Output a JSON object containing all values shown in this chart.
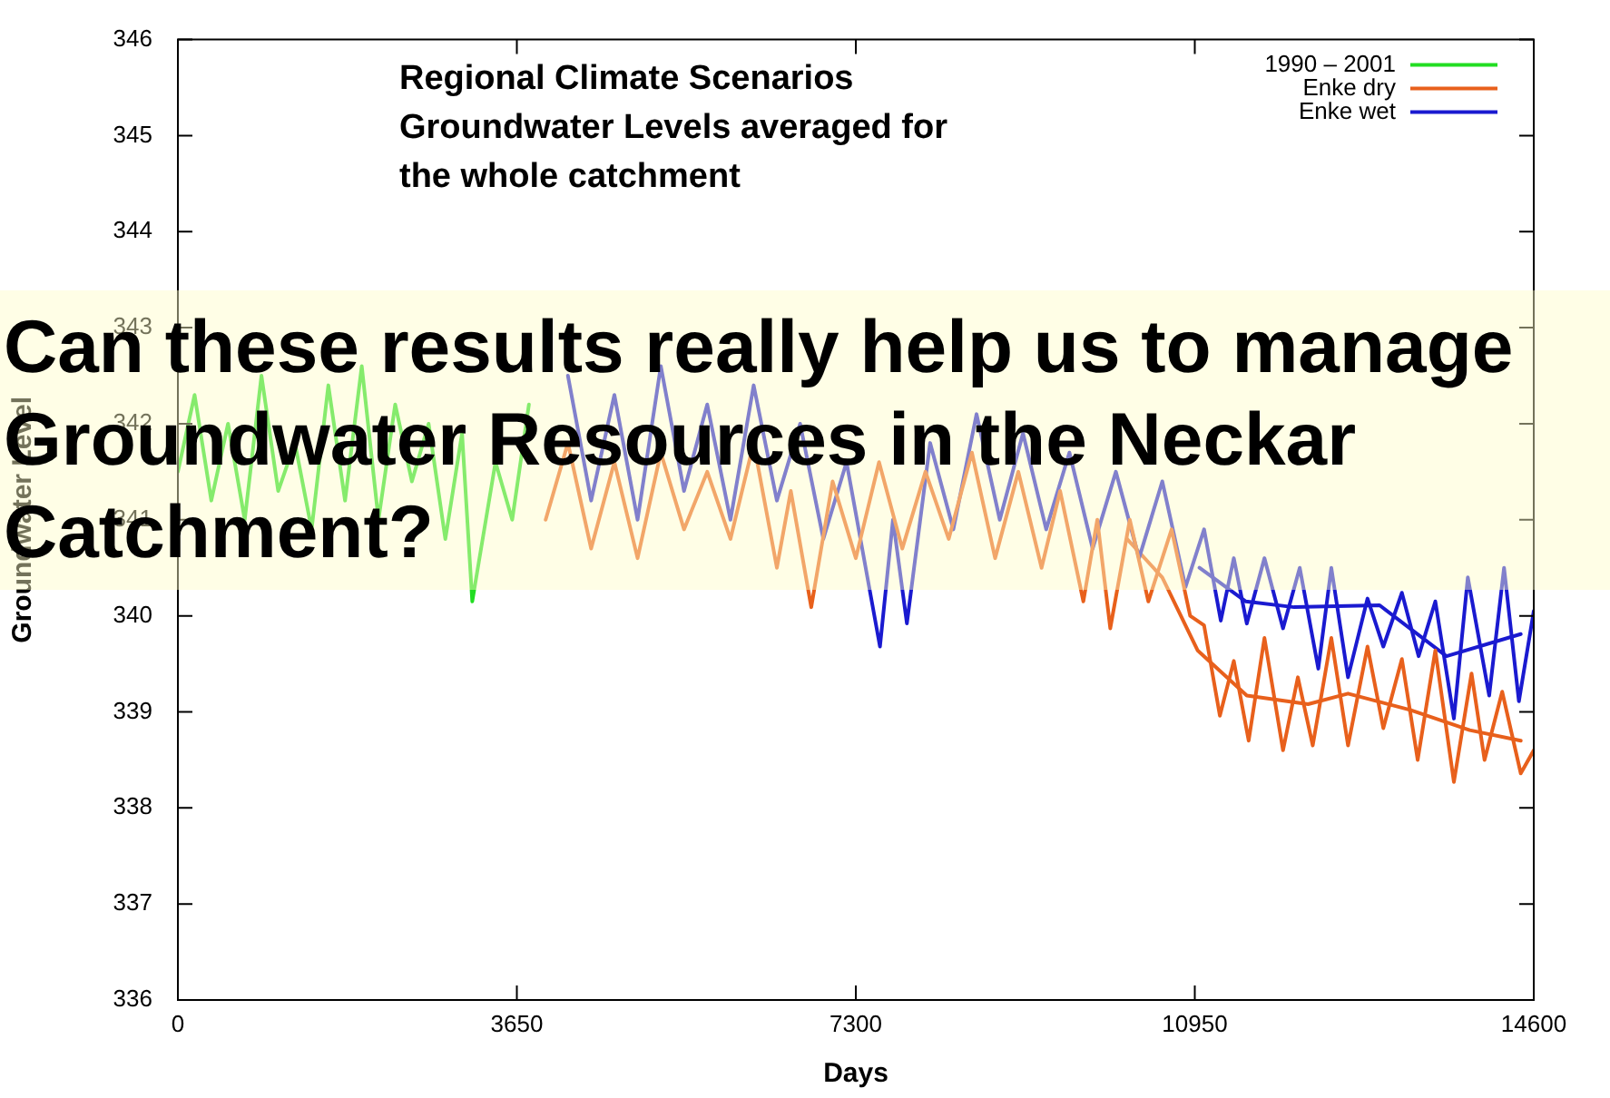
{
  "chart_data": {
    "type": "line",
    "title": "Regional Climate Scenarios\nGroundwater Levels averaged for\nthe whole catchment",
    "xlabel": "Days",
    "ylabel": "Groundwater Level",
    "legend": "top right",
    "grid": false,
    "marker": "none",
    "line_style": "solid",
    "xlim": [
      0,
      14600
    ],
    "xticks": [
      0,
      3650,
      7300,
      10950,
      14600
    ],
    "ylim": [
      336,
      346
    ],
    "yticks": [
      336,
      337,
      338,
      339,
      340,
      341,
      342,
      343,
      344,
      345,
      346
    ],
    "annotations": [
      "Can these results really help us to manage Groundwater Resources  in the Neckar Catchment?"
    ],
    "series": [
      {
        "name": "1990 – 2001",
        "color": "#22dd22",
        "x": [
          0,
          180,
          360,
          540,
          720,
          900,
          1080,
          1260,
          1440,
          1620,
          1800,
          1980,
          2160,
          2340,
          2520,
          2700,
          2880,
          3060,
          3170,
          3420,
          3600,
          3780
        ],
        "values": [
          341.5,
          342.3,
          341.2,
          342.0,
          341.0,
          342.5,
          341.3,
          341.8,
          340.9,
          342.4,
          341.2,
          342.6,
          341.0,
          342.2,
          341.4,
          342.0,
          340.8,
          341.9,
          340.15,
          341.6,
          341.0,
          342.2
        ]
      },
      {
        "name": "Enke dry",
        "color": "#e8601c",
        "x": [
          3960,
          4200,
          4450,
          4700,
          4950,
          5200,
          5450,
          5700,
          5950,
          6200,
          6450,
          6600,
          6820,
          7050,
          7300,
          7550,
          7800,
          8050,
          8300,
          8550,
          8800,
          9050,
          9300,
          9500,
          9750,
          9900,
          10040,
          10250,
          10450,
          10700,
          10900,
          11050,
          11220,
          11370,
          11530,
          11700,
          11900,
          12060,
          12220,
          12420,
          12600,
          12810,
          12980,
          13180,
          13350,
          13540,
          13740,
          13930,
          14070,
          14260,
          14460,
          14600
        ],
        "values": [
          341.0,
          341.8,
          340.7,
          341.6,
          340.6,
          341.7,
          340.9,
          341.5,
          340.8,
          341.8,
          340.5,
          341.3,
          340.09,
          341.4,
          340.6,
          341.6,
          340.7,
          341.5,
          340.8,
          341.7,
          340.6,
          341.5,
          340.5,
          341.3,
          340.15,
          341.0,
          339.87,
          341.0,
          340.15,
          340.9,
          340.0,
          339.9,
          338.96,
          339.53,
          338.7,
          339.77,
          338.6,
          339.36,
          338.65,
          339.77,
          338.65,
          339.68,
          338.83,
          339.55,
          338.5,
          339.64,
          338.27,
          339.4,
          338.5,
          339.21,
          338.36,
          338.6
        ]
      },
      {
        "name": "Enke wet",
        "color": "#1a1ad0",
        "x": [
          4200,
          4450,
          4700,
          4950,
          5200,
          5450,
          5700,
          5950,
          6200,
          6450,
          6700,
          6950,
          7200,
          7560,
          7700,
          7850,
          8100,
          8350,
          8600,
          8850,
          9100,
          9350,
          9600,
          9850,
          10100,
          10350,
          10600,
          10850,
          11050,
          11230,
          11370,
          11510,
          11700,
          11900,
          12080,
          12280,
          12420,
          12600,
          12810,
          12980,
          13180,
          13360,
          13540,
          13740,
          13890,
          14120,
          14280,
          14440,
          14600
        ],
        "values": [
          342.5,
          341.2,
          342.3,
          341.0,
          342.6,
          341.3,
          342.2,
          341.0,
          342.4,
          341.2,
          342.0,
          340.8,
          341.6,
          339.68,
          341.0,
          339.92,
          341.8,
          340.9,
          342.1,
          341.0,
          341.9,
          340.9,
          341.7,
          340.7,
          341.5,
          340.6,
          341.4,
          340.3,
          340.9,
          339.95,
          340.6,
          339.92,
          340.6,
          339.87,
          340.5,
          339.45,
          340.5,
          339.36,
          340.18,
          339.68,
          340.24,
          339.58,
          340.15,
          338.93,
          340.4,
          339.17,
          340.5,
          339.11,
          340.05
        ]
      },
      {
        "color": "#e8601c",
        "x": [
          10220,
          10600,
          10980,
          11510,
          12170,
          12600,
          13270,
          13910,
          14460
        ],
        "values": [
          340.8,
          340.4,
          339.64,
          339.17,
          339.08,
          339.19,
          339.02,
          338.81,
          338.7
        ]
      },
      {
        "color": "#1a1ad0",
        "x": [
          11000,
          11500,
          12020,
          12940,
          13660,
          14460
        ],
        "values": [
          340.5,
          340.15,
          340.09,
          340.11,
          339.58,
          339.81
        ]
      }
    ]
  }
}
